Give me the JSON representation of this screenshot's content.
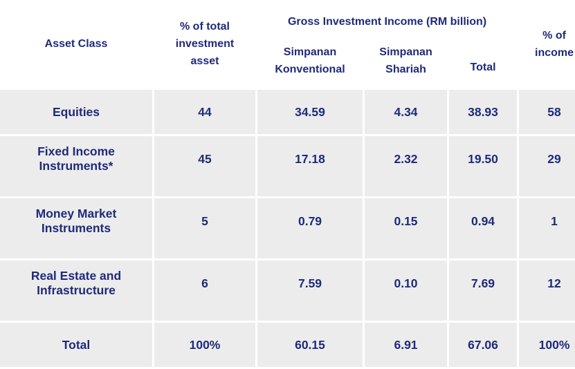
{
  "headers": {
    "asset_class": "Asset Class",
    "pct_total_asset": "% of total investment asset",
    "gross_income_group": "Gross Investment Income (RM billion)",
    "simpanan_konventional": "Simpanan Konventional",
    "simpanan_shariah": "Simpanan Shariah",
    "total": "Total",
    "pct_income": "% of income"
  },
  "rows": [
    {
      "asset": "Equities",
      "pct_asset": "44",
      "konventional": "34.59",
      "shariah": "4.34",
      "total": "38.93",
      "pct_income": "58"
    },
    {
      "asset": "Fixed Income Instruments*",
      "pct_asset": "45",
      "konventional": "17.18",
      "shariah": "2.32",
      "total": "19.50",
      "pct_income": "29"
    },
    {
      "asset": "Money Market Instruments",
      "pct_asset": "5",
      "konventional": "0.79",
      "shariah": "0.15",
      "total": "0.94",
      "pct_income": "1"
    },
    {
      "asset": "Real Estate and Infrastructure",
      "pct_asset": "6",
      "konventional": "7.59",
      "shariah": "0.10",
      "total": "7.69",
      "pct_income": "12"
    },
    {
      "asset": "Total",
      "pct_asset": "100%",
      "konventional": "60.15",
      "shariah": "6.91",
      "total": "67.06",
      "pct_income": "100%"
    }
  ]
}
